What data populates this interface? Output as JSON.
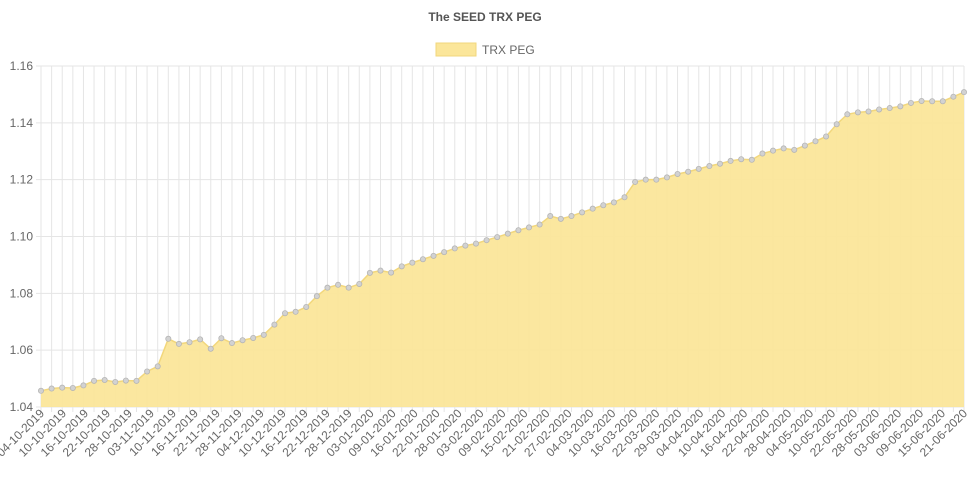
{
  "chart_data": {
    "type": "line",
    "title": "The SEED TRX PEG",
    "legend": {
      "position": "top",
      "label": "TRX PEG"
    },
    "colors": {
      "fill": "#fbe69a",
      "stroke": "#f2d77c",
      "point": "#d2d2d2",
      "point_border": "#b5b5b5"
    },
    "ylim": [
      1.04,
      1.16
    ],
    "y_ticks": [
      1.04,
      1.06,
      1.08,
      1.1,
      1.12,
      1.14,
      1.16
    ],
    "x_tick_labels": [
      "04-10-2019",
      "10-10-2019",
      "16-10-2019",
      "22-10-2019",
      "28-10-2019",
      "03-11-2019",
      "10-11-2019",
      "16-11-2019",
      "22-11-2019",
      "28-11-2019",
      "04-12-2019",
      "10-12-2019",
      "16-12-2019",
      "22-12-2019",
      "28-12-2019",
      "03-01-2020",
      "09-01-2020",
      "16-01-2020",
      "22-01-2020",
      "28-01-2020",
      "03-02-2020",
      "09-02-2020",
      "15-02-2020",
      "21-02-2020",
      "27-02-2020",
      "04-03-2020",
      "10-03-2020",
      "16-03-2020",
      "22-03-2020",
      "29-03-2020",
      "04-04-2020",
      "10-04-2020",
      "16-04-2020",
      "22-04-2020",
      "28-04-2020",
      "04-05-2020",
      "10-05-2020",
      "22-05-2020",
      "28-05-2020",
      "03-06-2020",
      "09-06-2020",
      "15-06-2020",
      "21-06-2020"
    ],
    "series": [
      {
        "name": "TRX PEG",
        "values": [
          1.0457,
          1.0465,
          1.0468,
          1.0467,
          1.0476,
          1.0492,
          1.0495,
          1.0488,
          1.0493,
          1.0492,
          1.0525,
          1.0543,
          1.064,
          1.0622,
          1.0628,
          1.0638,
          1.0605,
          1.0642,
          1.0625,
          1.0635,
          1.0643,
          1.0654,
          1.069,
          1.073,
          1.0735,
          1.0752,
          1.079,
          1.082,
          1.083,
          1.082,
          1.0833,
          1.0872,
          1.088,
          1.0873,
          1.0895,
          1.0908,
          1.092,
          1.0932,
          1.0945,
          1.0958,
          1.0968,
          1.0975,
          1.0987,
          1.0998,
          1.101,
          1.1022,
          1.1032,
          1.1042,
          1.1072,
          1.1062,
          1.1072,
          1.1085,
          1.1098,
          1.111,
          1.112,
          1.1138,
          1.1192,
          1.12,
          1.12,
          1.1208,
          1.122,
          1.1228,
          1.1238,
          1.1248,
          1.1256,
          1.1266,
          1.1272,
          1.127,
          1.1292,
          1.1302,
          1.131,
          1.1305,
          1.132,
          1.1335,
          1.1352,
          1.1395,
          1.143,
          1.1437,
          1.144,
          1.1447,
          1.1452,
          1.1458,
          1.147,
          1.1477,
          1.1476,
          1.1476,
          1.1492,
          1.1508
        ]
      }
    ],
    "grid": true
  }
}
